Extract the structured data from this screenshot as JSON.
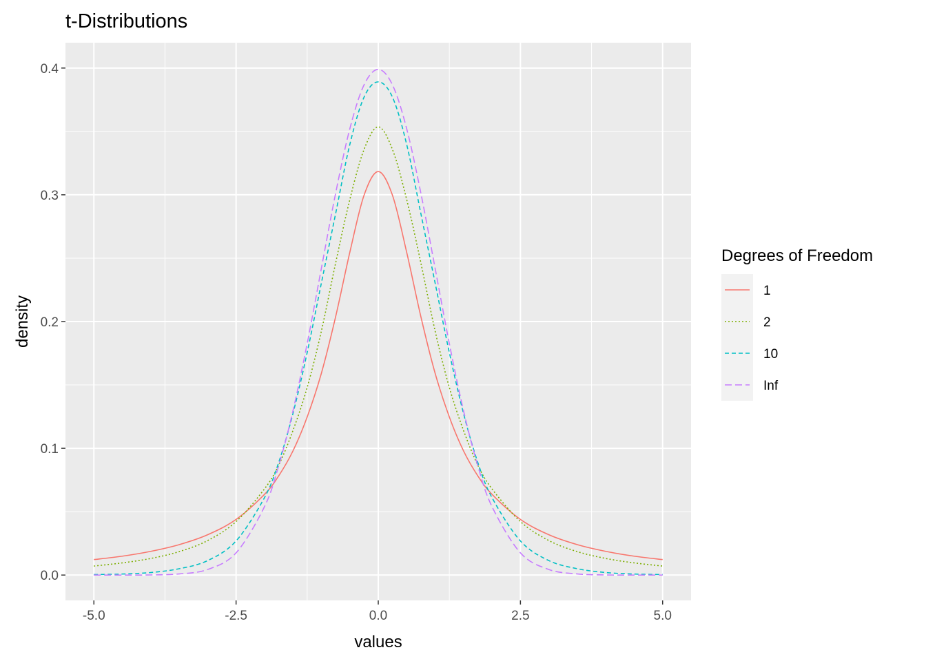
{
  "chart_data": {
    "type": "line",
    "title": "t-Distributions",
    "xlabel": "values",
    "ylabel": "density",
    "xlim": [
      -5.0,
      5.0
    ],
    "ylim": [
      0,
      0.4
    ],
    "x_ticks": [
      "-5.0",
      "-2.5",
      "0.0",
      "2.5",
      "5.0"
    ],
    "y_ticks": [
      "0.0",
      "0.1",
      "0.2",
      "0.3",
      "0.4"
    ],
    "grid": true,
    "legend": {
      "title": "Degrees of Freedom",
      "position": "right"
    },
    "x": [
      -5,
      -4.5,
      -4,
      -3.5,
      -3,
      -2.5,
      -2,
      -1.75,
      -1.5,
      -1.25,
      -1,
      -0.75,
      -0.5,
      -0.25,
      0,
      0.25,
      0.5,
      0.75,
      1,
      1.25,
      1.5,
      1.75,
      2,
      2.5,
      3,
      3.5,
      4,
      4.5,
      5
    ],
    "series": [
      {
        "name": "1",
        "color": "#F8766D",
        "dash": "solid",
        "values": [
          0.0122,
          0.0149,
          0.0187,
          0.024,
          0.0318,
          0.0439,
          0.0637,
          0.0783,
          0.0979,
          0.1247,
          0.1592,
          0.2037,
          0.2546,
          0.2996,
          0.3183,
          0.2996,
          0.2546,
          0.2037,
          0.1592,
          0.1247,
          0.0979,
          0.0783,
          0.0637,
          0.0439,
          0.0318,
          0.024,
          0.0187,
          0.0149,
          0.0122
        ]
      },
      {
        "name": "2",
        "color": "#7CAE00",
        "dash": "dotted",
        "values": [
          0.0071,
          0.0096,
          0.0131,
          0.0185,
          0.0272,
          0.0422,
          0.068,
          0.0868,
          0.114,
          0.148,
          0.1925,
          0.2461,
          0.2962,
          0.3357,
          0.3536,
          0.3357,
          0.2962,
          0.2461,
          0.1925,
          0.148,
          0.114,
          0.0868,
          0.068,
          0.0422,
          0.0272,
          0.0185,
          0.0131,
          0.0096,
          0.0071
        ]
      },
      {
        "name": "10",
        "color": "#00BFC4",
        "dash": "dashed",
        "values": [
          0.0004,
          0.0008,
          0.002,
          0.005,
          0.0114,
          0.0269,
          0.0611,
          0.0889,
          0.1274,
          0.1755,
          0.2304,
          0.285,
          0.3397,
          0.377,
          0.3891,
          0.377,
          0.3397,
          0.285,
          0.2304,
          0.1755,
          0.1274,
          0.0889,
          0.0611,
          0.0269,
          0.0114,
          0.005,
          0.002,
          0.0008,
          0.0004
        ]
      },
      {
        "name": "Inf",
        "color": "#C77CFF",
        "dash": "longdash",
        "values": [
          0.0,
          0.0,
          0.0001,
          0.0009,
          0.0044,
          0.0175,
          0.054,
          0.0863,
          0.1295,
          0.1826,
          0.242,
          0.3011,
          0.3521,
          0.3867,
          0.3989,
          0.3867,
          0.3521,
          0.3011,
          0.242,
          0.1826,
          0.1295,
          0.0863,
          0.054,
          0.0175,
          0.0044,
          0.0009,
          0.0001,
          0.0,
          0.0
        ]
      }
    ]
  }
}
